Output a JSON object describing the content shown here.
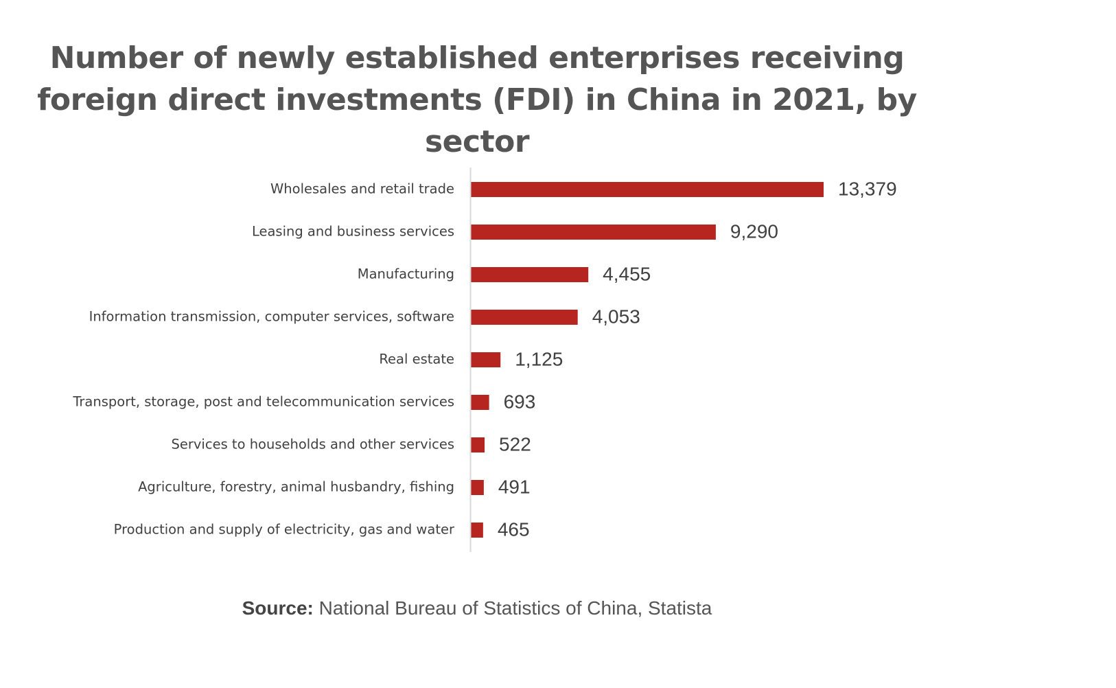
{
  "title_line1": "Number of newly established enterprises receiving",
  "title_line2": "foreign direct investments (FDI) in China in 2021, by sector",
  "source": {
    "label": "Source:",
    "text": " National Bureau of Statistics of China, Statista"
  },
  "colors": {
    "bar": "#b72520",
    "axis": "#d9d9d9"
  },
  "chart_data": {
    "type": "bar",
    "orientation": "horizontal",
    "title": "Number of newly established enterprises receiving foreign direct investments (FDI) in China in 2021, by sector",
    "categories": [
      "Wholesales and retail trade",
      "Leasing and business services",
      "Manufacturing",
      "Information transmission, computer services, software",
      "Real estate",
      "Transport, storage, post and telecommunication services",
      "Services to households and other services",
      "Agriculture, forestry, animal husbandry, fishing",
      "Production and supply of electricity, gas and water"
    ],
    "values": [
      13379,
      9290,
      4455,
      4053,
      1125,
      693,
      522,
      491,
      465
    ],
    "value_labels": [
      "13,379",
      "9,290",
      "4,455",
      "4,053",
      "1,125",
      "693",
      "522",
      "491",
      "465"
    ],
    "xlabel": "",
    "ylabel": "",
    "xlim": [
      0,
      13379
    ],
    "grid": false,
    "legend": "none"
  }
}
